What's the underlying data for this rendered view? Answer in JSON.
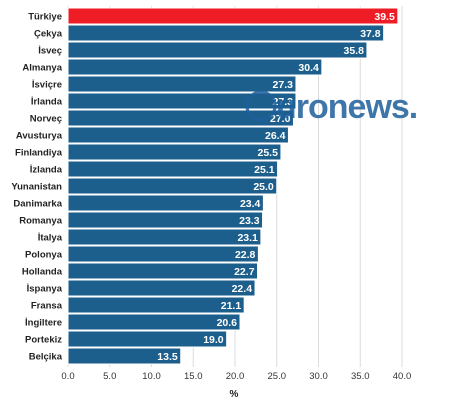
{
  "chart_data": {
    "type": "bar",
    "orientation": "horizontal",
    "categories": [
      "Türkiye",
      "Çekya",
      "İsveç",
      "Almanya",
      "İsviçre",
      "İrlanda",
      "Norveç",
      "Avusturya",
      "Finlandiya",
      "İzlanda",
      "Yunanistan",
      "Danimarka",
      "Romanya",
      "İtalya",
      "Polonya",
      "Hollanda",
      "İspanya",
      "Fransa",
      "İngiltere",
      "Portekiz",
      "Belçika"
    ],
    "values": [
      39.5,
      37.8,
      35.8,
      30.4,
      27.3,
      27.3,
      27.0,
      26.4,
      25.5,
      25.1,
      25.0,
      23.4,
      23.3,
      23.1,
      22.8,
      22.7,
      22.4,
      21.1,
      20.6,
      19.0,
      13.5
    ],
    "value_labels": [
      "39.5",
      "37.8",
      "35.8",
      "30.4",
      "27.3",
      "27.3",
      "27.0",
      "26.4",
      "25.5",
      "25.1",
      "25.0",
      "23.4",
      "23.3",
      "23.1",
      "22.8",
      "22.7",
      "22.4",
      "21.1",
      "20.6",
      "19.0",
      "13.5"
    ],
    "xlabel": "%",
    "ylabel": "",
    "xlim": [
      0,
      40
    ],
    "x_ticks": [
      "0.0",
      "5.0",
      "10.0",
      "15.0",
      "20.0",
      "25.0",
      "30.0",
      "35.0",
      "40.0"
    ],
    "grid": "vertical",
    "colors": {
      "bar": "#1d5f8c",
      "highlight": "#ee1c24",
      "bar_border": "#ffffff",
      "grid": "#dcdcdc",
      "watermark": "#1e5f9c"
    },
    "highlight_category": "Türkiye",
    "watermark": "euronews."
  }
}
